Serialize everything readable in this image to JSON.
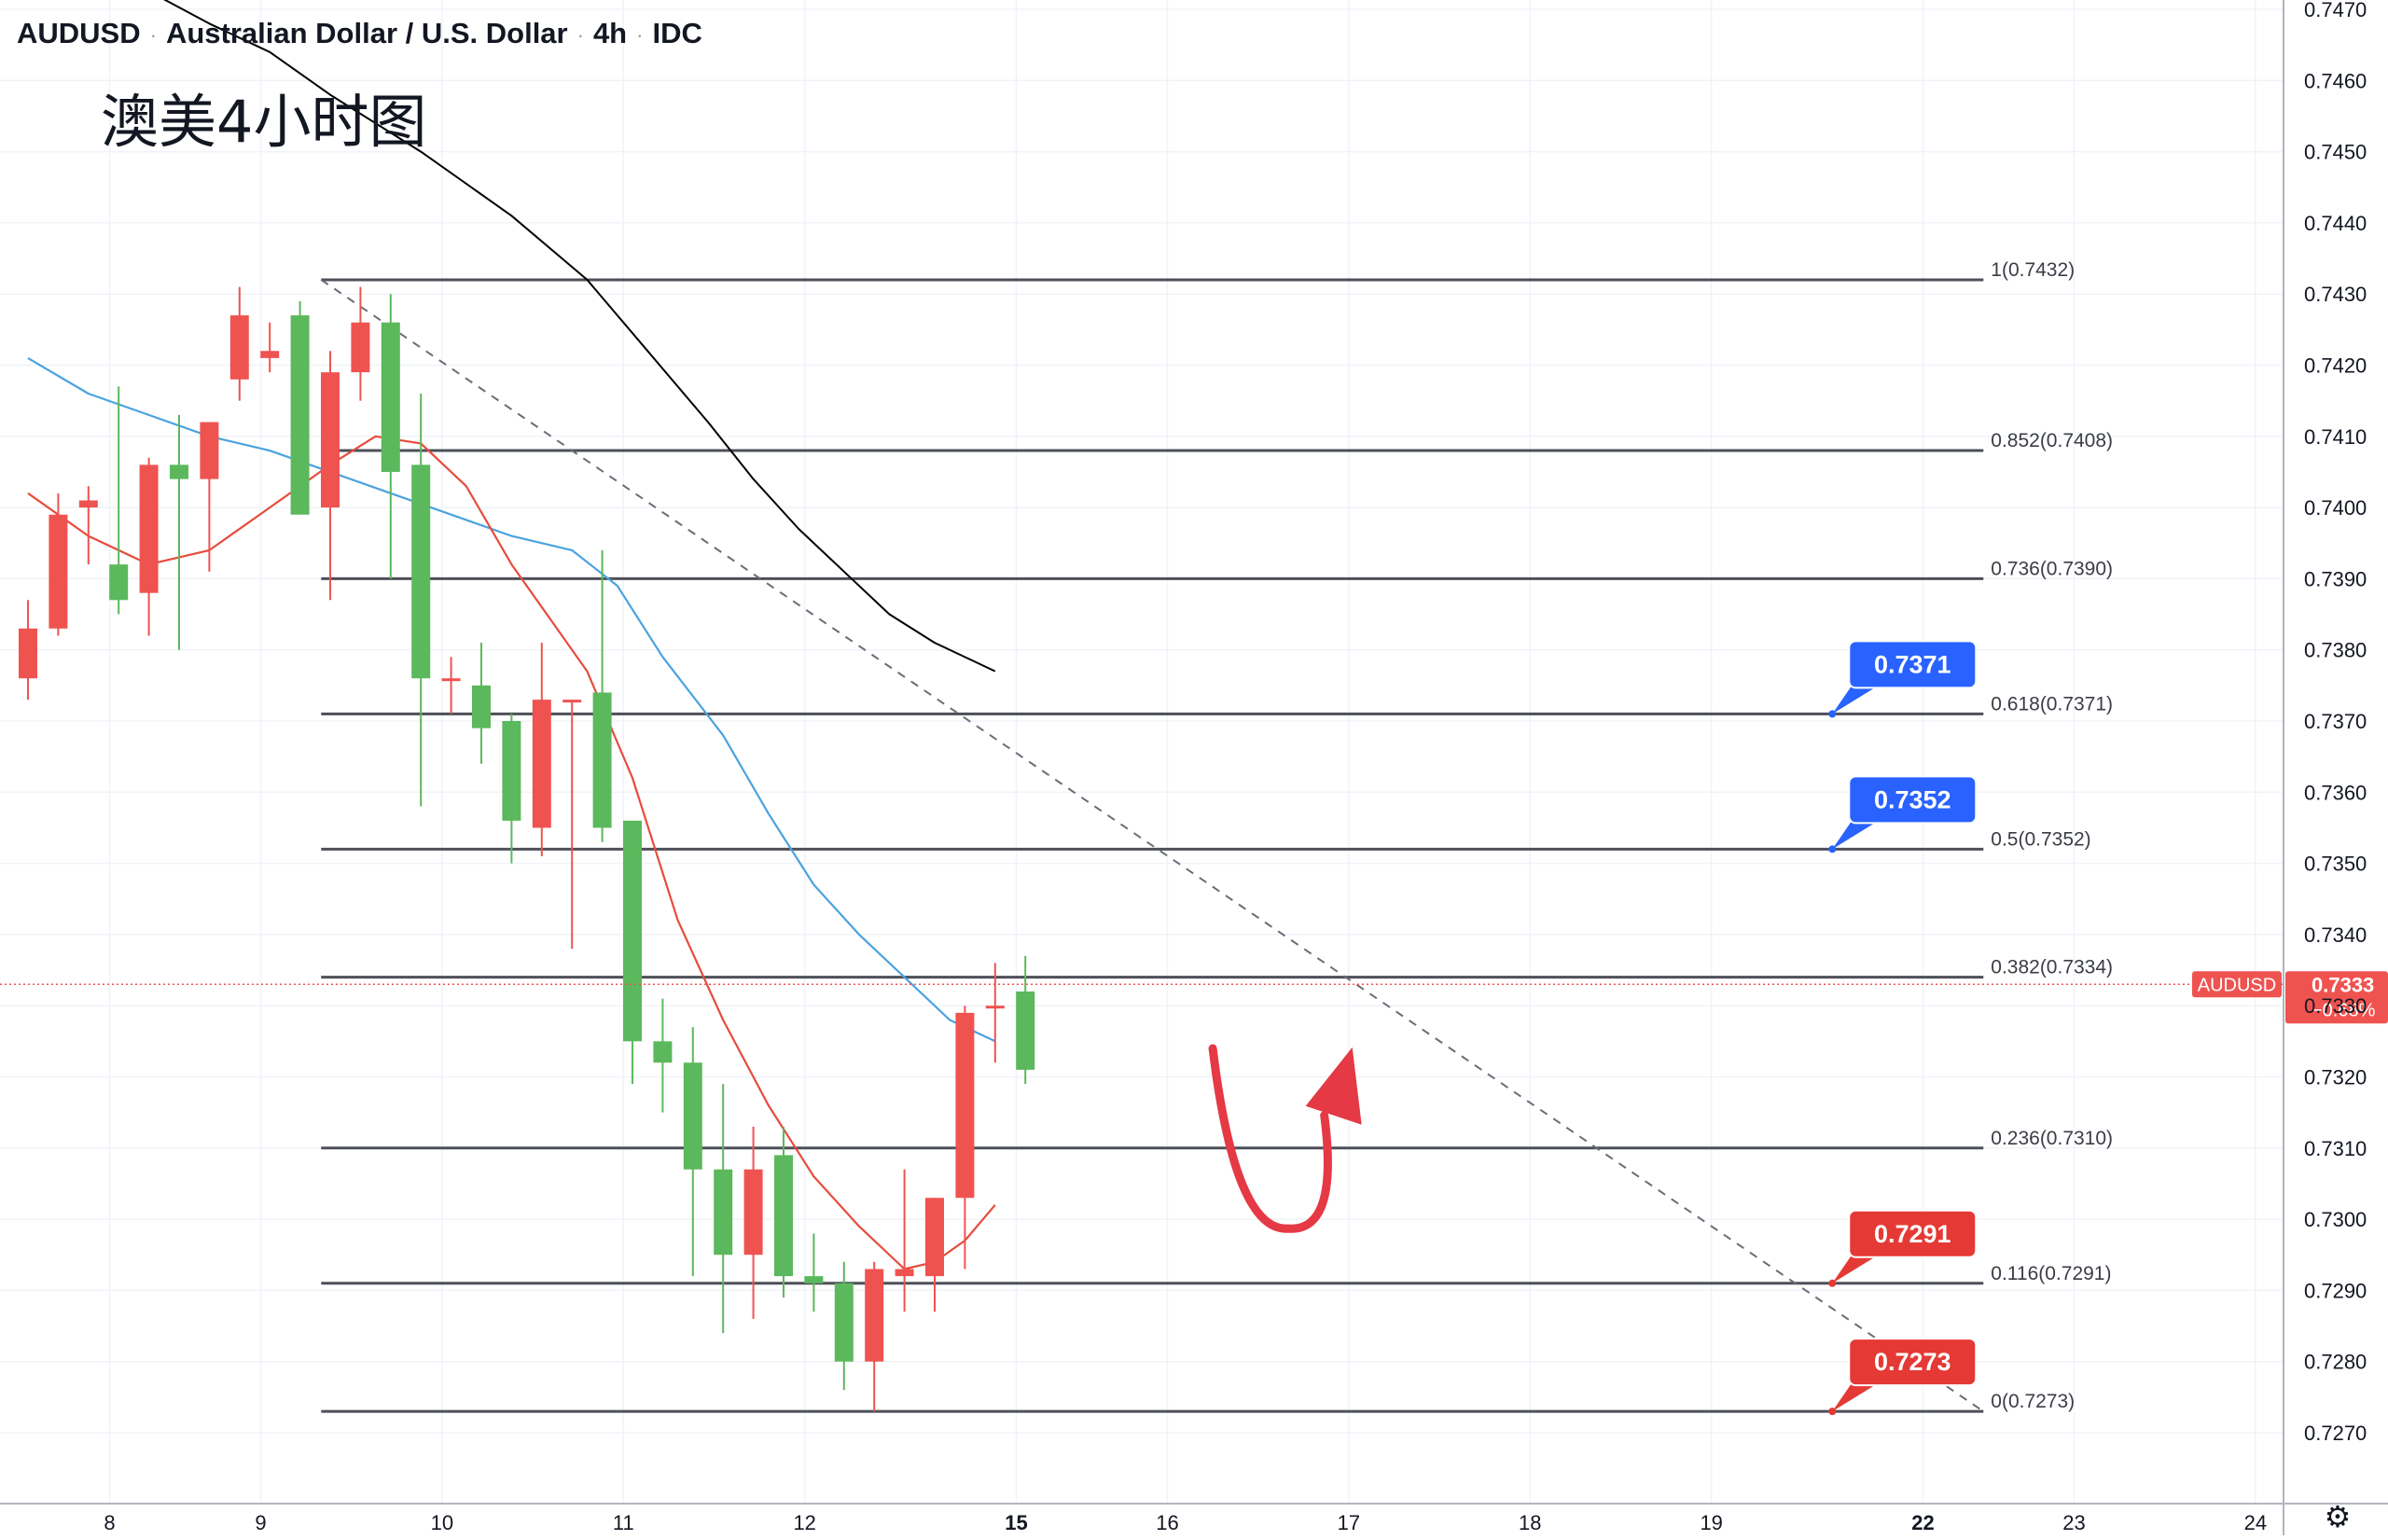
{
  "header": {
    "symbol": "AUDUSD",
    "description": "Australian Dollar / U.S. Dollar",
    "interval": "4h",
    "source": "IDC",
    "separator": "·"
  },
  "annotation_text": "澳美4小时图",
  "colors": {
    "up": "#ef5350",
    "down": "#5cb85c",
    "sma_fast": "#e74c3c",
    "sma_mid": "#4aa3df",
    "sma_slow": "#000000",
    "fib_line": "#4d5058",
    "callout_blue": "#2962ff",
    "callout_red": "#e53935",
    "arrow": "#e53945",
    "price_tag": "#ef5350"
  },
  "icons": {
    "settings": "gear-icon"
  },
  "chart_data": {
    "type": "candlestick",
    "y_axis": {
      "min": 0.7265,
      "max": 0.7472,
      "ticks": [
        "0.7470",
        "0.7460",
        "0.7450",
        "0.7440",
        "0.7430",
        "0.7420",
        "0.7410",
        "0.7400",
        "0.7390",
        "0.7380",
        "0.7370",
        "0.7360",
        "0.7350",
        "0.7340",
        "0.7330",
        "0.7320",
        "0.7310",
        "0.7300",
        "0.7290",
        "0.7280",
        "0.7270"
      ],
      "position": "right"
    },
    "x_axis": {
      "ticks": [
        {
          "label": "8",
          "bar": 2.7
        },
        {
          "label": "9",
          "bar": 7.7
        },
        {
          "label": "10",
          "bar": 13.7
        },
        {
          "label": "11",
          "bar": 19.7
        },
        {
          "label": "12",
          "bar": 25.7
        },
        {
          "label": "15",
          "bar": 32.7,
          "bold": true
        },
        {
          "label": "16",
          "bar": 37.7
        },
        {
          "label": "17",
          "bar": 43.7
        },
        {
          "label": "18",
          "bar": 49.7
        },
        {
          "label": "19",
          "bar": 55.7
        },
        {
          "label": "22",
          "bar": 62.7,
          "bold": true
        },
        {
          "label": "23",
          "bar": 67.7
        },
        {
          "label": "24",
          "bar": 73.7
        }
      ]
    },
    "candles": [
      {
        "o": 0.7376,
        "h": 0.7387,
        "l": 0.7373,
        "c": 0.7383
      },
      {
        "o": 0.7383,
        "h": 0.7402,
        "l": 0.7382,
        "c": 0.7399
      },
      {
        "o": 0.74,
        "h": 0.7403,
        "l": 0.7392,
        "c": 0.7401
      },
      {
        "o": 0.7392,
        "h": 0.7417,
        "l": 0.7385,
        "c": 0.7387
      },
      {
        "o": 0.7388,
        "h": 0.7407,
        "l": 0.7382,
        "c": 0.7406
      },
      {
        "o": 0.7406,
        "h": 0.7413,
        "l": 0.738,
        "c": 0.7404
      },
      {
        "o": 0.7404,
        "h": 0.7412,
        "l": 0.7391,
        "c": 0.7412
      },
      {
        "o": 0.7418,
        "h": 0.7431,
        "l": 0.7415,
        "c": 0.7427
      },
      {
        "o": 0.7421,
        "h": 0.7426,
        "l": 0.7419,
        "c": 0.7422
      },
      {
        "o": 0.7427,
        "h": 0.7429,
        "l": 0.7401,
        "c": 0.7399
      },
      {
        "o": 0.74,
        "h": 0.7422,
        "l": 0.7387,
        "c": 0.7419
      },
      {
        "o": 0.7419,
        "h": 0.7431,
        "l": 0.7415,
        "c": 0.7426
      },
      {
        "o": 0.7426,
        "h": 0.743,
        "l": 0.739,
        "c": 0.7405
      },
      {
        "o": 0.7406,
        "h": 0.7416,
        "l": 0.7358,
        "c": 0.7376
      },
      {
        "o": 0.7376,
        "h": 0.7379,
        "l": 0.7371,
        "c": 0.7376
      },
      {
        "o": 0.7375,
        "h": 0.7381,
        "l": 0.7364,
        "c": 0.7369
      },
      {
        "o": 0.737,
        "h": 0.7371,
        "l": 0.735,
        "c": 0.7356
      },
      {
        "o": 0.7355,
        "h": 0.7381,
        "l": 0.7351,
        "c": 0.7373
      },
      {
        "o": 0.7373,
        "h": 0.7373,
        "l": 0.7338,
        "c": 0.7373
      },
      {
        "o": 0.7374,
        "h": 0.7394,
        "l": 0.7353,
        "c": 0.7355
      },
      {
        "o": 0.7356,
        "h": 0.7356,
        "l": 0.7319,
        "c": 0.7325
      },
      {
        "o": 0.7325,
        "h": 0.7331,
        "l": 0.7315,
        "c": 0.7322
      },
      {
        "o": 0.7322,
        "h": 0.7327,
        "l": 0.7292,
        "c": 0.7307
      },
      {
        "o": 0.7307,
        "h": 0.7319,
        "l": 0.7284,
        "c": 0.7295
      },
      {
        "o": 0.7295,
        "h": 0.7313,
        "l": 0.7286,
        "c": 0.7307
      },
      {
        "o": 0.7309,
        "h": 0.7313,
        "l": 0.7289,
        "c": 0.7292
      },
      {
        "o": 0.7292,
        "h": 0.7298,
        "l": 0.7287,
        "c": 0.7291
      },
      {
        "o": 0.7291,
        "h": 0.7294,
        "l": 0.7276,
        "c": 0.728
      },
      {
        "o": 0.728,
        "h": 0.7294,
        "l": 0.7273,
        "c": 0.7293
      },
      {
        "o": 0.7292,
        "h": 0.7307,
        "l": 0.7287,
        "c": 0.7293
      },
      {
        "o": 0.7292,
        "h": 0.7303,
        "l": 0.7287,
        "c": 0.7303
      },
      {
        "o": 0.7303,
        "h": 0.733,
        "l": 0.7293,
        "c": 0.7329
      },
      {
        "o": 0.733,
        "h": 0.7336,
        "l": 0.7322,
        "c": 0.733
      },
      {
        "o": 0.7332,
        "h": 0.7337,
        "l": 0.7319,
        "c": 0.7321
      }
    ],
    "sma_fast": [
      [
        0,
        0.7402
      ],
      [
        2,
        0.7396
      ],
      [
        4,
        0.7392
      ],
      [
        6,
        0.7394
      ],
      [
        8,
        0.74
      ],
      [
        10,
        0.7406
      ],
      [
        11.5,
        0.741
      ],
      [
        13,
        0.7409
      ],
      [
        14.5,
        0.7403
      ],
      [
        16,
        0.7392
      ],
      [
        17.5,
        0.7383
      ],
      [
        18.5,
        0.7377
      ],
      [
        20,
        0.7362
      ],
      [
        21.5,
        0.7342
      ],
      [
        23,
        0.7328
      ],
      [
        24.5,
        0.7316
      ],
      [
        26,
        0.7306
      ],
      [
        27.5,
        0.7299
      ],
      [
        29,
        0.7293
      ],
      [
        30,
        0.7294
      ],
      [
        31,
        0.7297
      ],
      [
        32,
        0.7302
      ]
    ],
    "sma_mid": [
      [
        0,
        0.7421
      ],
      [
        2,
        0.7416
      ],
      [
        4,
        0.7413
      ],
      [
        6,
        0.741
      ],
      [
        8,
        0.7408
      ],
      [
        10,
        0.7405
      ],
      [
        12,
        0.7402
      ],
      [
        14,
        0.7399
      ],
      [
        16,
        0.7396
      ],
      [
        18,
        0.7394
      ],
      [
        19.5,
        0.7389
      ],
      [
        21,
        0.7379
      ],
      [
        23,
        0.7368
      ],
      [
        24.5,
        0.7357
      ],
      [
        26,
        0.7347
      ],
      [
        27.5,
        0.734
      ],
      [
        29,
        0.7334
      ],
      [
        30.5,
        0.7328
      ],
      [
        32,
        0.7325
      ]
    ],
    "sma_slow": [
      [
        3.8,
        0.7473
      ],
      [
        6,
        0.7468
      ],
      [
        8,
        0.7464
      ],
      [
        10,
        0.7458
      ],
      [
        13,
        0.745
      ],
      [
        16,
        0.7441
      ],
      [
        18.5,
        0.7432
      ],
      [
        20.5,
        0.7422
      ],
      [
        22.5,
        0.7412
      ],
      [
        24,
        0.7404
      ],
      [
        25.5,
        0.7397
      ],
      [
        27,
        0.7391
      ],
      [
        28.5,
        0.7385
      ],
      [
        30,
        0.7381
      ],
      [
        31.5,
        0.7378
      ],
      [
        32,
        0.7377
      ]
    ],
    "fib_levels": [
      {
        "label": "1(0.7432)",
        "value": 0.7432
      },
      {
        "label": "0.852(0.7408)",
        "value": 0.7408
      },
      {
        "label": "0.736(0.7390)",
        "value": 0.739
      },
      {
        "label": "0.618(0.7371)",
        "value": 0.7371
      },
      {
        "label": "0.5(0.7352)",
        "value": 0.7352
      },
      {
        "label": "0.382(0.7334)",
        "value": 0.7334
      },
      {
        "label": "0.236(0.7310)",
        "value": 0.731
      },
      {
        "label": "0.116(0.7291)",
        "value": 0.7291
      },
      {
        "label": "0(0.7273)",
        "value": 0.7273
      }
    ],
    "fib_range_bars": [
      9.7,
      64.7
    ],
    "trendline": {
      "from": [
        9.7,
        0.7432
      ],
      "to": [
        64.7,
        0.7273
      ],
      "style": "dashed"
    },
    "callouts": [
      {
        "text": "0.7371",
        "value": 0.7371,
        "anchor_bar": 59.7,
        "color": "blue"
      },
      {
        "text": "0.7352",
        "value": 0.7352,
        "anchor_bar": 59.7,
        "color": "blue"
      },
      {
        "text": "0.7291",
        "value": 0.7291,
        "anchor_bar": 59.7,
        "color": "red"
      },
      {
        "text": "0.7273",
        "value": 0.7273,
        "anchor_bar": 59.7,
        "color": "red"
      }
    ],
    "current_price": {
      "symbol": "AUDUSD",
      "value": 0.7333,
      "price_text": "0.7333",
      "change_text": "−0.68%"
    },
    "arrow": {
      "path": [
        [
          39.2,
          0.7324
        ],
        [
          40.2,
          0.7306
        ],
        [
          41.7,
          0.73
        ],
        [
          43.2,
          0.731
        ]
      ],
      "direction": "up"
    }
  }
}
